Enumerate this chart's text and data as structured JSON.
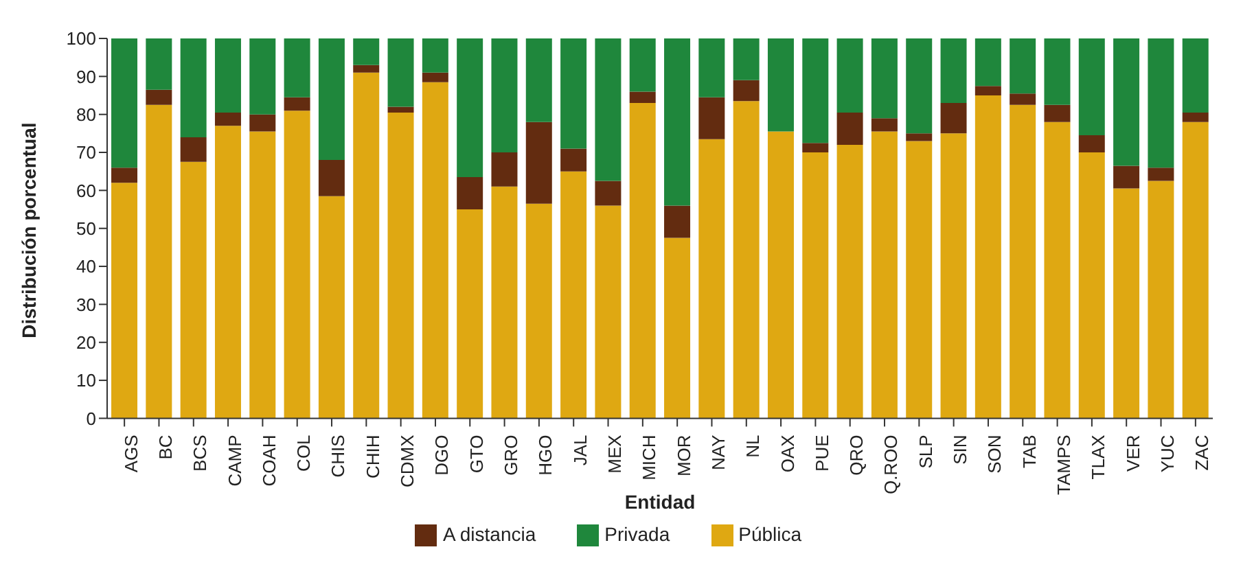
{
  "chart_data": {
    "type": "bar",
    "stacked": true,
    "xlabel": "Entidad",
    "ylabel": "Distribución porcentual",
    "categories": [
      "AGS",
      "BC",
      "BCS",
      "CAMP",
      "COAH",
      "COL",
      "CHIS",
      "CHIH",
      "CDMX",
      "DGO",
      "GTO",
      "GRO",
      "HGO",
      "JAL",
      "MEX",
      "MICH",
      "MOR",
      "NAY",
      "NL",
      "OAX",
      "PUE",
      "QRO",
      "Q.ROO",
      "SLP",
      "SIN",
      "SON",
      "TAB",
      "TAMPS",
      "TLAX",
      "VER",
      "YUC",
      "ZAC"
    ],
    "series": [
      {
        "name": "Pública",
        "color": "#dfa812",
        "values": [
          62,
          82.5,
          67.5,
          77,
          75.5,
          81,
          58.5,
          91,
          80.5,
          88.5,
          55,
          61,
          56.5,
          65,
          56,
          83,
          47.5,
          73.5,
          83.5,
          75.5,
          70,
          72,
          75.5,
          73,
          75,
          85,
          82.5,
          78,
          70,
          60.5,
          62.5,
          78
        ]
      },
      {
        "name": "A distancia",
        "color": "#632c10",
        "values": [
          4,
          4,
          6.5,
          3.5,
          4.5,
          3.5,
          9.5,
          2,
          1.5,
          2.5,
          8.5,
          9,
          21.5,
          6,
          6.5,
          3,
          8.5,
          11,
          5.5,
          0,
          2.5,
          8.5,
          3.5,
          2,
          8,
          2.5,
          3,
          4.5,
          4.5,
          6,
          3.5,
          2.5
        ]
      },
      {
        "name": "Privada",
        "color": "#1f873c",
        "values": [
          34,
          13.5,
          26,
          19.5,
          20,
          15.5,
          32,
          7,
          18,
          9,
          36.5,
          30,
          22,
          29,
          37.5,
          14,
          44,
          15.5,
          11,
          24.5,
          27.5,
          19.5,
          21,
          25,
          17,
          12.5,
          14.5,
          17.5,
          25.5,
          33.5,
          34,
          19.5
        ]
      }
    ],
    "ylim": [
      0,
      100
    ],
    "yticks": [
      0,
      10,
      20,
      30,
      40,
      50,
      60,
      70,
      80,
      90,
      100
    ],
    "grid": false,
    "legend": "bottom"
  }
}
